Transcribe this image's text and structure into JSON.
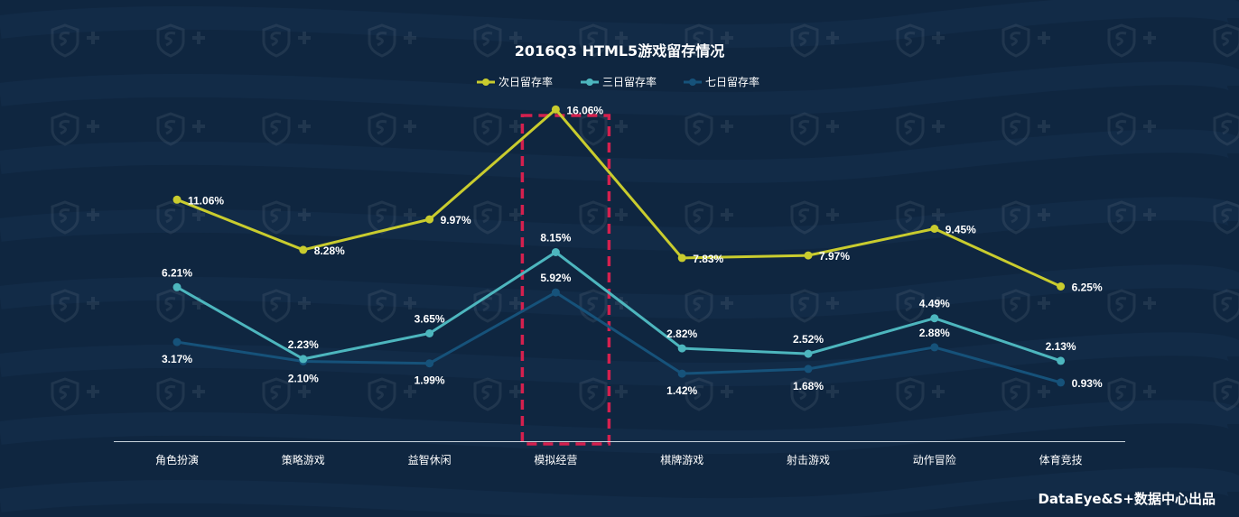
{
  "chart_data": {
    "type": "line",
    "title": "2016Q3 HTML5游戏留存情况",
    "categories": [
      "角色扮演",
      "策略游戏",
      "益智休闲",
      "模拟经营",
      "棋牌游戏",
      "射击游戏",
      "动作冒险",
      "体育竞技"
    ],
    "series": [
      {
        "name": "次日留存率",
        "color": "#c9cc2e",
        "values": [
          11.06,
          8.28,
          9.97,
          16.06,
          7.83,
          7.97,
          9.45,
          6.25
        ],
        "labels": [
          "11.06%",
          "8.28%",
          "9.97%",
          "16.06%",
          "7.83%",
          "7.97%",
          "9.45%",
          "6.25%"
        ]
      },
      {
        "name": "三日留存率",
        "color": "#4db6be",
        "values": [
          6.21,
          2.23,
          3.65,
          8.15,
          2.82,
          2.52,
          4.49,
          2.13
        ],
        "labels": [
          "6.21%",
          "2.23%",
          "3.65%",
          "8.15%",
          "2.82%",
          "2.52%",
          "4.49%",
          "2.13%"
        ]
      },
      {
        "name": "七日留存率",
        "color": "#16527a",
        "values": [
          3.17,
          2.1,
          1.99,
          5.92,
          1.42,
          1.68,
          2.88,
          0.93
        ],
        "labels": [
          "3.17%",
          "2.10%",
          "1.99%",
          "5.92%",
          "1.42%",
          "1.68%",
          "2.88%",
          "0.93%"
        ]
      }
    ],
    "legend_position": "top",
    "grid": false,
    "highlight_category": "模拟经营",
    "highlight_color": "#d4204e"
  },
  "credit": "DataEye&S+数据中心出品"
}
